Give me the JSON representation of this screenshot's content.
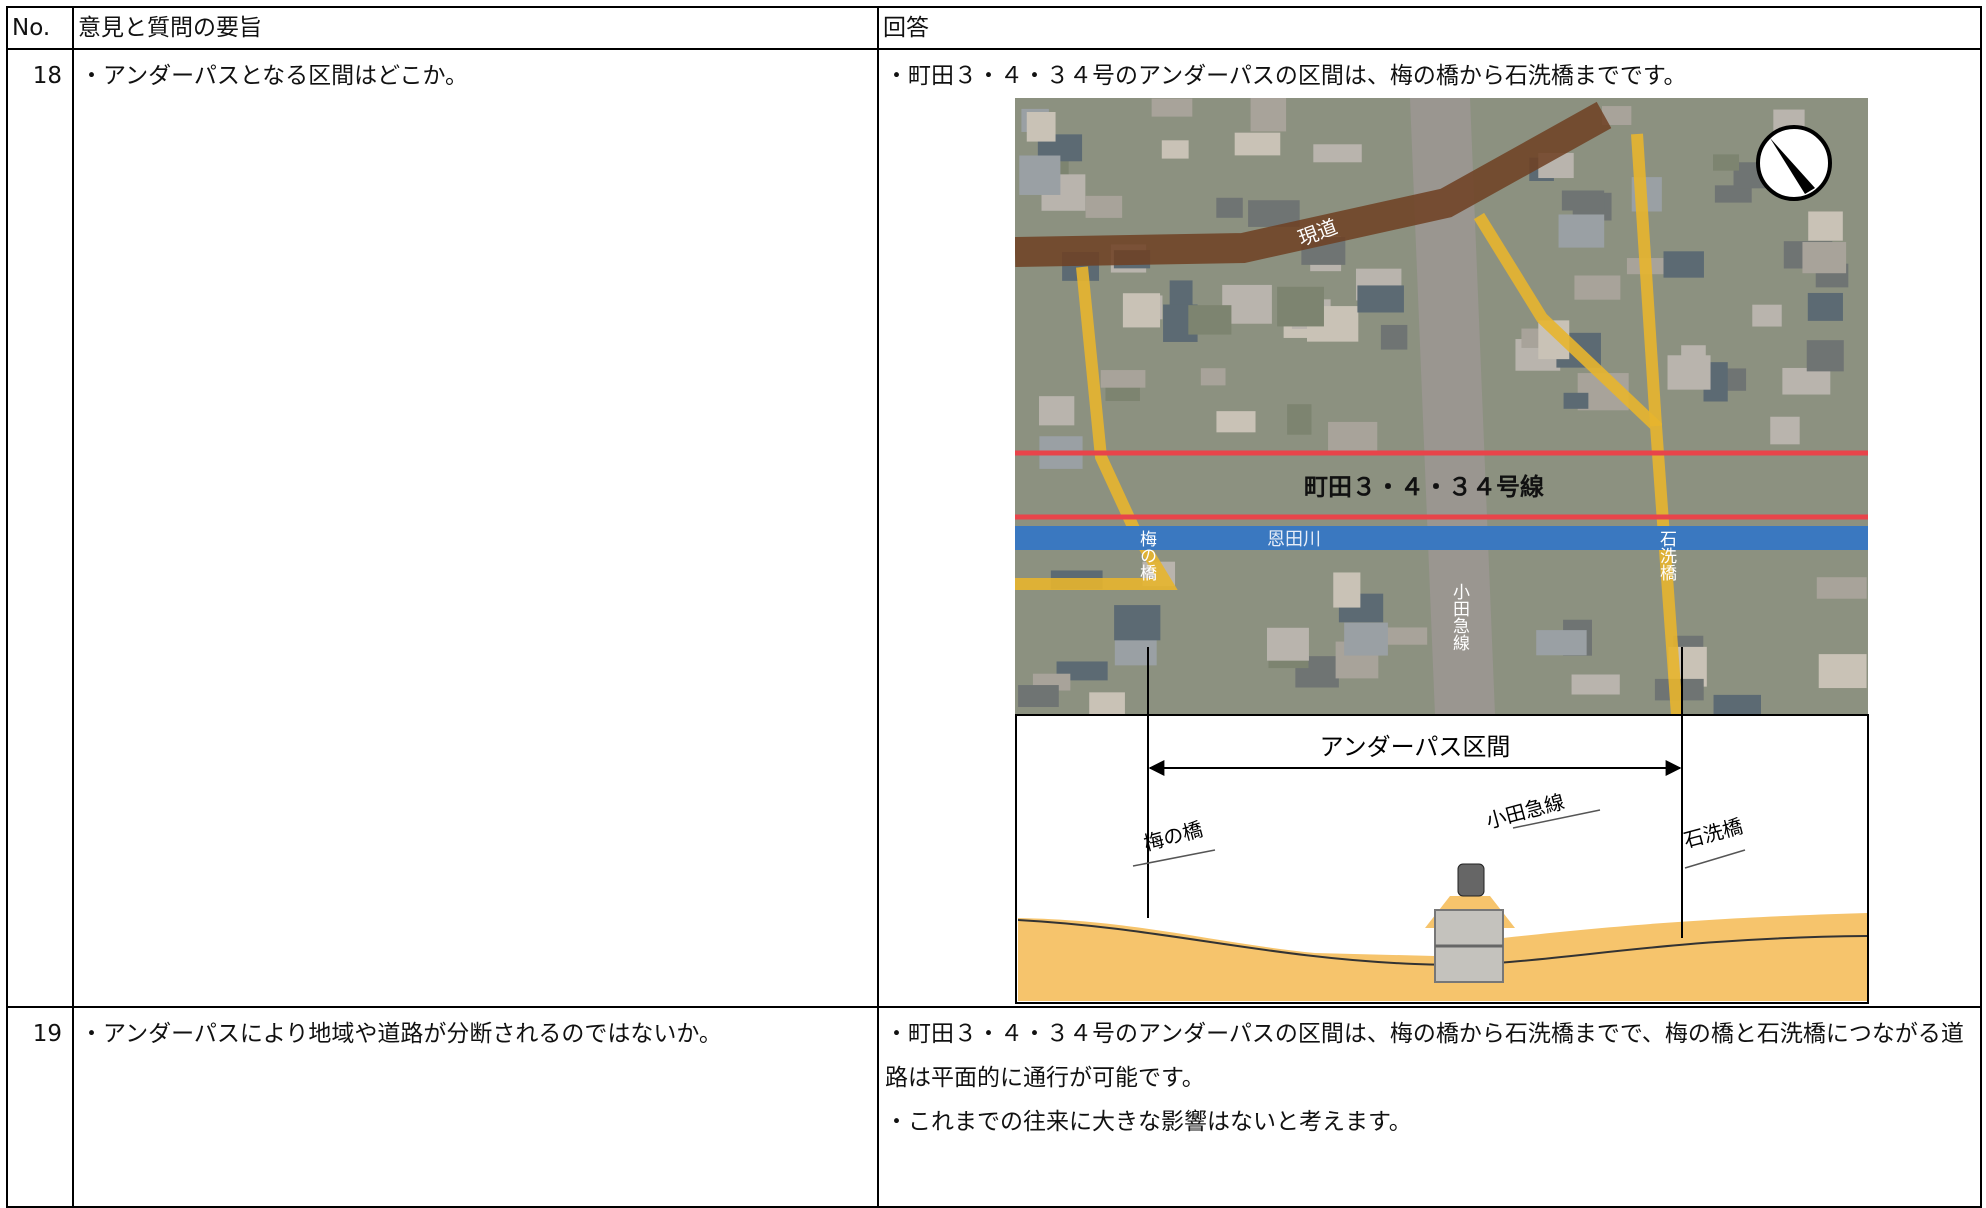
{
  "table": {
    "header": [
      "No.",
      "意見と質問の要旨",
      "回答"
    ],
    "rows": [
      {
        "no": "18",
        "question": "・アンダーパスとなる区間はどこか。",
        "answer": [
          "・町田３・４・３４号のアンダーパスの区間は、梅の橋から石洗橋までです。"
        ]
      },
      {
        "no": "19",
        "question": "・アンダーパスにより地域や道路が分断されるのではないか。",
        "answer": [
          "・町田３・４・３４号のアンダーパスの区間は、梅の橋から石洗橋までで、梅の橋と石洗橋につながる道路は平面的に通行が可能です。",
          "・これまでの往来に大きな影響はないと考えます。"
        ]
      }
    ]
  },
  "figure": {
    "road_label": "現道",
    "route_label": "町田３・４・３４号線",
    "river_label": "恩田川",
    "bridge_west": "梅の橋",
    "bridge_east": "石洗橋",
    "railway": "小田急線",
    "underpass_label": "アンダーパス区間"
  }
}
